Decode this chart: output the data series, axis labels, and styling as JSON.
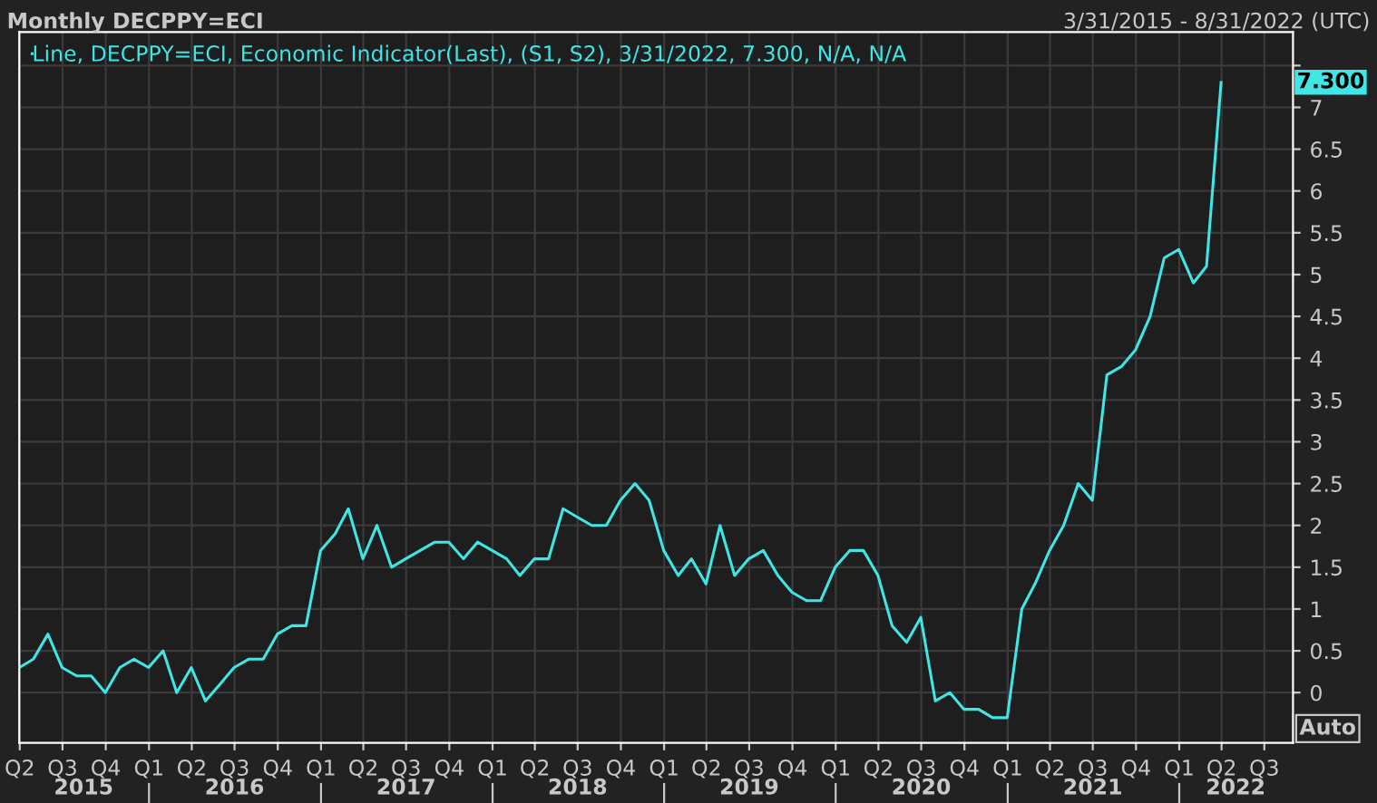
{
  "chart_data": {
    "type": "line",
    "title": "Monthly DECPPY=ECI",
    "subtitle": "3/31/2015 - 8/31/2022 (UTC)",
    "x": [
      "2015-03-31",
      "2015-04-30",
      "2015-05-31",
      "2015-06-30",
      "2015-07-31",
      "2015-08-31",
      "2015-09-30",
      "2015-10-31",
      "2015-11-30",
      "2015-12-31",
      "2016-01-31",
      "2016-02-29",
      "2016-03-31",
      "2016-04-30",
      "2016-05-31",
      "2016-06-30",
      "2016-07-31",
      "2016-08-31",
      "2016-09-30",
      "2016-10-31",
      "2016-11-30",
      "2016-12-31",
      "2017-01-31",
      "2017-02-28",
      "2017-03-31",
      "2017-04-30",
      "2017-05-31",
      "2017-06-30",
      "2017-07-31",
      "2017-08-31",
      "2017-09-30",
      "2017-10-31",
      "2017-11-30",
      "2017-12-31",
      "2018-01-31",
      "2018-02-28",
      "2018-03-31",
      "2018-04-30",
      "2018-05-31",
      "2018-06-30",
      "2018-07-31",
      "2018-08-31",
      "2018-09-30",
      "2018-10-31",
      "2018-11-30",
      "2018-12-31",
      "2019-01-31",
      "2019-02-28",
      "2019-03-31",
      "2019-04-30",
      "2019-05-31",
      "2019-06-30",
      "2019-07-31",
      "2019-08-31",
      "2019-09-30",
      "2019-10-31",
      "2019-11-30",
      "2019-12-31",
      "2020-01-31",
      "2020-02-29",
      "2020-03-31",
      "2020-04-30",
      "2020-05-31",
      "2020-06-30",
      "2020-07-31",
      "2020-08-31",
      "2020-09-30",
      "2020-10-31",
      "2020-11-30",
      "2020-12-31",
      "2021-01-31",
      "2021-02-28",
      "2021-03-31",
      "2021-04-30",
      "2021-05-31",
      "2021-06-30",
      "2021-07-31",
      "2021-08-31",
      "2021-09-30",
      "2021-10-31",
      "2021-11-30",
      "2021-12-31",
      "2022-01-31",
      "2022-02-28",
      "2022-03-31"
    ],
    "series": [
      {
        "name": "Line, DECPPY=ECI, Economic Indicator(Last), (S1, S2), 3/31/2022, 7.300, N/A, N/A",
        "color": "#3ee6e6",
        "values": [
          0.3,
          0.4,
          0.7,
          0.3,
          0.2,
          0.2,
          0.0,
          0.3,
          0.4,
          0.3,
          0.5,
          0.0,
          0.3,
          -0.1,
          0.1,
          0.3,
          0.4,
          0.4,
          0.7,
          0.8,
          0.8,
          1.7,
          1.9,
          2.2,
          1.6,
          2.0,
          1.5,
          1.6,
          1.7,
          1.8,
          1.8,
          1.6,
          1.8,
          1.7,
          1.6,
          1.4,
          1.6,
          1.6,
          2.2,
          2.1,
          2.0,
          2.0,
          2.3,
          2.5,
          2.3,
          1.7,
          1.4,
          1.6,
          1.3,
          2.0,
          1.4,
          1.6,
          1.7,
          1.4,
          1.2,
          1.1,
          1.1,
          1.5,
          1.7,
          1.7,
          1.4,
          0.8,
          0.6,
          0.9,
          -0.1,
          0.0,
          -0.2,
          -0.2,
          -0.3,
          -0.3,
          1.0,
          1.3,
          1.7,
          2.0,
          2.5,
          2.3,
          3.8,
          3.9,
          4.1,
          4.5,
          5.2,
          5.3,
          4.9,
          5.1,
          7.3
        ]
      }
    ],
    "xlim": [
      "2015-03-31",
      "2022-08-31"
    ],
    "xticks": [
      {
        "value": "2015-04-01",
        "label": "Q2"
      },
      {
        "value": "2015-07-01",
        "label": "Q3"
      },
      {
        "value": "2015-10-01",
        "label": "Q4"
      },
      {
        "value": "2016-01-01",
        "label": "Q1"
      },
      {
        "value": "2016-04-01",
        "label": "Q2"
      },
      {
        "value": "2016-07-01",
        "label": "Q3"
      },
      {
        "value": "2016-10-01",
        "label": "Q4"
      },
      {
        "value": "2017-01-01",
        "label": "Q1"
      },
      {
        "value": "2017-04-01",
        "label": "Q2"
      },
      {
        "value": "2017-07-01",
        "label": "Q3"
      },
      {
        "value": "2017-10-01",
        "label": "Q4"
      },
      {
        "value": "2018-01-01",
        "label": "Q1"
      },
      {
        "value": "2018-04-01",
        "label": "Q2"
      },
      {
        "value": "2018-07-01",
        "label": "Q3"
      },
      {
        "value": "2018-10-01",
        "label": "Q4"
      },
      {
        "value": "2019-01-01",
        "label": "Q1"
      },
      {
        "value": "2019-04-01",
        "label": "Q2"
      },
      {
        "value": "2019-07-01",
        "label": "Q3"
      },
      {
        "value": "2019-10-01",
        "label": "Q4"
      },
      {
        "value": "2020-01-01",
        "label": "Q1"
      },
      {
        "value": "2020-04-01",
        "label": "Q2"
      },
      {
        "value": "2020-07-01",
        "label": "Q3"
      },
      {
        "value": "2020-10-01",
        "label": "Q4"
      },
      {
        "value": "2021-01-01",
        "label": "Q1"
      },
      {
        "value": "2021-04-01",
        "label": "Q2"
      },
      {
        "value": "2021-07-01",
        "label": "Q3"
      },
      {
        "value": "2021-10-01",
        "label": "Q4"
      },
      {
        "value": "2022-01-01",
        "label": "Q1"
      },
      {
        "value": "2022-04-01",
        "label": "Q2"
      },
      {
        "value": "2022-07-01",
        "label": "Q3"
      }
    ],
    "x2lim": [
      "2015-03-31",
      "2022-08-31"
    ],
    "x2ticks": [
      {
        "value": "2015-08-15",
        "label": "2015"
      },
      {
        "value": "2016-01-01",
        "label": null
      },
      {
        "value": "2016-07-01",
        "label": "2016"
      },
      {
        "value": "2017-01-01",
        "label": null
      },
      {
        "value": "2017-07-01",
        "label": "2017"
      },
      {
        "value": "2018-01-01",
        "label": null
      },
      {
        "value": "2018-07-01",
        "label": "2018"
      },
      {
        "value": "2019-01-01",
        "label": null
      },
      {
        "value": "2019-07-01",
        "label": "2019"
      },
      {
        "value": "2020-01-01",
        "label": null
      },
      {
        "value": "2020-07-01",
        "label": "2020"
      },
      {
        "value": "2021-01-01",
        "label": null
      },
      {
        "value": "2021-07-01",
        "label": "2021"
      },
      {
        "value": "2022-01-01",
        "label": null
      },
      {
        "value": "2022-05-01",
        "label": "2022"
      }
    ],
    "ylim": [
      -0.6,
      7.9
    ],
    "yticks": [
      0,
      0.5,
      1,
      1.5,
      2,
      2.5,
      3,
      3.5,
      4,
      4.5,
      5,
      5.5,
      6,
      6.5,
      7,
      {
        "value": 7.5,
        "label": null
      }
    ],
    "annotations": [
      "7.300",
      "Auto"
    ],
    "grid": true,
    "legend": "top left",
    "line_style": "solid",
    "marker": "none"
  }
}
